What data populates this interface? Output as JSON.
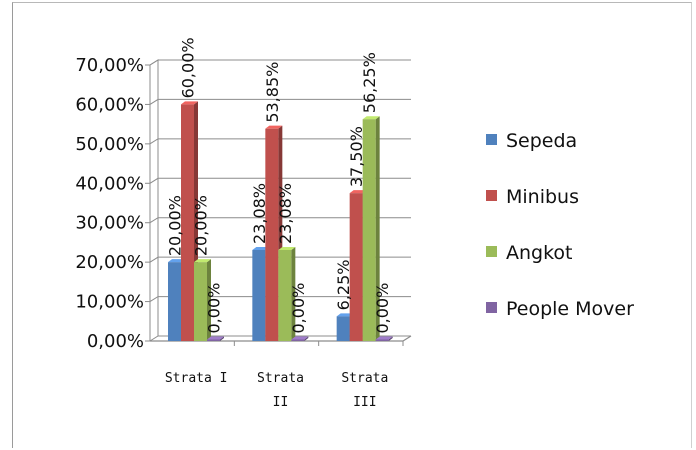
{
  "chart_data": {
    "type": "bar",
    "style": "3d-clustered-column",
    "categories": [
      [
        "Strata I"
      ],
      [
        "Strata",
        "II"
      ],
      [
        "Strata",
        "III"
      ]
    ],
    "series": [
      {
        "name": "Sepeda",
        "color": "#4f81bd",
        "values": [
          20.0,
          23.08,
          6.25
        ],
        "labels": [
          "20,00%",
          "23,08%",
          "6,25%"
        ]
      },
      {
        "name": "Minibus",
        "color": "#c0504d",
        "values": [
          60.0,
          53.85,
          37.5
        ],
        "labels": [
          "60,00%",
          "53,85%",
          "37,50%"
        ]
      },
      {
        "name": "Angkot",
        "color": "#9bbb59",
        "values": [
          20.0,
          23.08,
          56.25
        ],
        "labels": [
          "20,00%",
          "23,08%",
          "56,25%"
        ]
      },
      {
        "name": "People Mover",
        "color": "#8064a2",
        "values": [
          0,
          0,
          0
        ],
        "labels": [
          "0,00%",
          "0,00%",
          "0,00%"
        ]
      }
    ],
    "y_ticks": [
      "0,00%",
      "10,00%",
      "20,00%",
      "30,00%",
      "40,00%",
      "50,00%",
      "60,00%",
      "70,00%"
    ],
    "ylim": [
      0,
      70
    ],
    "grid": true,
    "legend": "right"
  }
}
